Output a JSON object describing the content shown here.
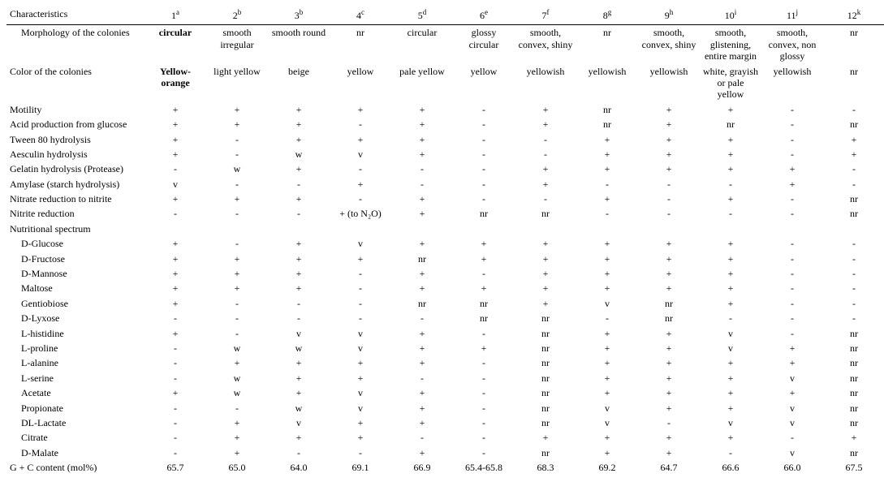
{
  "header": {
    "title": "Characteristics",
    "columns": [
      {
        "num": "1",
        "sup": "a"
      },
      {
        "num": "2",
        "sup": "b"
      },
      {
        "num": "3",
        "sup": "b"
      },
      {
        "num": "4",
        "sup": "c"
      },
      {
        "num": "5",
        "sup": "d"
      },
      {
        "num": "6",
        "sup": "e"
      },
      {
        "num": "7",
        "sup": "f"
      },
      {
        "num": "8",
        "sup": "g"
      },
      {
        "num": "9",
        "sup": "h"
      },
      {
        "num": "10",
        "sup": "i"
      },
      {
        "num": "11",
        "sup": "j"
      },
      {
        "num": "12",
        "sup": "k"
      }
    ]
  },
  "rows": [
    {
      "label": "Morphology of the colonies",
      "indent": true,
      "bold_first": true,
      "cells": [
        "circular",
        "smooth irregular",
        "smooth round",
        "nr",
        "circular",
        "glossy circular",
        "smooth, convex, shiny",
        "nr",
        "smooth, convex, shiny",
        "smooth, glistening, entire margin",
        "smooth, convex, non glossy",
        "nr"
      ]
    },
    {
      "label": "Color of the colonies",
      "indent": false,
      "bold_first": true,
      "cells": [
        "Yellow-orange",
        "light yellow",
        "beige",
        "yellow",
        "pale yellow",
        "yellow",
        "yellowish",
        "yellowish",
        "yellowish",
        "white, grayish or pale yellow",
        "yellowish",
        "nr"
      ]
    },
    {
      "label": "Motility",
      "cells": [
        "+",
        "+",
        "+",
        "+",
        "+",
        "-",
        "+",
        "nr",
        "+",
        "+",
        "-",
        "-"
      ]
    },
    {
      "label": "Acid production from glucose",
      "cells": [
        "+",
        "+",
        "+",
        "-",
        "+",
        "-",
        "+",
        "nr",
        "+",
        "nr",
        "-",
        "nr"
      ]
    },
    {
      "label": "Tween 80 hydrolysis",
      "cells": [
        "+",
        "-",
        "+",
        "+",
        "+",
        "-",
        "-",
        "+",
        "+",
        "+",
        "-",
        "+"
      ]
    },
    {
      "label": "Aesculin hydrolysis",
      "cells": [
        "+",
        "-",
        "w",
        "v",
        "+",
        "-",
        "-",
        "+",
        "+",
        "+",
        "-",
        "+"
      ]
    },
    {
      "label": "Gelatin hydrolysis (Protease)",
      "cells": [
        "-",
        "w",
        "+",
        "-",
        "-",
        "-",
        "+",
        "+",
        "+",
        "+",
        "+",
        "-"
      ]
    },
    {
      "label": "Amylase (starch hydrolysis)",
      "cells": [
        "v",
        "-",
        "-",
        "+",
        "-",
        "-",
        "+",
        "-",
        "-",
        "-",
        "+",
        "-"
      ]
    },
    {
      "label": "Nitrate reduction to nitrite",
      "cells": [
        "+",
        "+",
        "+",
        "-",
        "+",
        "-",
        "-",
        "+",
        "-",
        "+",
        "-",
        "nr"
      ]
    },
    {
      "label": "Nitrite reduction",
      "cells": [
        "-",
        "-",
        "-",
        "+ (to N₂O)",
        "+",
        "nr",
        "nr",
        "-",
        "-",
        "-",
        "-",
        "nr"
      ]
    },
    {
      "label": "Nutritional spectrum",
      "cells": [
        "",
        "",
        "",
        "",
        "",
        "",
        "",
        "",
        "",
        "",
        "",
        ""
      ]
    },
    {
      "label": "D-Glucose",
      "indent": true,
      "cells": [
        "+",
        "-",
        "+",
        "v",
        "+",
        "+",
        "+",
        "+",
        "+",
        "+",
        "-",
        "-"
      ]
    },
    {
      "label": "D-Fructose",
      "indent": true,
      "cells": [
        "+",
        "+",
        "+",
        "+",
        "nr",
        "+",
        "+",
        "+",
        "+",
        "+",
        "-",
        "-"
      ]
    },
    {
      "label": "D-Mannose",
      "indent": true,
      "cells": [
        "+",
        "+",
        "+",
        "-",
        "+",
        "-",
        "+",
        "+",
        "+",
        "+",
        "-",
        "-"
      ]
    },
    {
      "label": "Maltose",
      "indent": true,
      "cells": [
        "+",
        "+",
        "+",
        "-",
        "+",
        "+",
        "+",
        "+",
        "+",
        "+",
        "-",
        "-"
      ]
    },
    {
      "label": "Gentiobiose",
      "indent": true,
      "cells": [
        "+",
        "-",
        "-",
        "-",
        "nr",
        "nr",
        "+",
        "v",
        "nr",
        "+",
        "-",
        "-"
      ]
    },
    {
      "label": "D-Lyxose",
      "indent": true,
      "cells": [
        "-",
        "-",
        "-",
        "-",
        "-",
        "nr",
        "nr",
        "-",
        "nr",
        "-",
        "-",
        "-"
      ]
    },
    {
      "label": "L-histidine",
      "indent": true,
      "cells": [
        "+",
        "-",
        "v",
        "v",
        "+",
        "-",
        "nr",
        "+",
        "+",
        "v",
        "-",
        "nr"
      ]
    },
    {
      "label": "L-proline",
      "indent": true,
      "cells": [
        "-",
        "w",
        "w",
        "v",
        "+",
        "+",
        "nr",
        "+",
        "+",
        "v",
        "+",
        "nr"
      ]
    },
    {
      "label": "L-alanine",
      "indent": true,
      "cells": [
        "-",
        "+",
        "+",
        "+",
        "+",
        "-",
        "nr",
        "+",
        "+",
        "+",
        "+",
        "nr"
      ]
    },
    {
      "label": "L-serine",
      "indent": true,
      "cells": [
        "-",
        "w",
        "+",
        "+",
        "-",
        "-",
        "nr",
        "+",
        "+",
        "+",
        "v",
        "nr"
      ]
    },
    {
      "label": "Acetate",
      "indent": true,
      "cells": [
        "+",
        "w",
        "+",
        "v",
        "+",
        "-",
        "nr",
        "+",
        "+",
        "+",
        "+",
        "nr"
      ]
    },
    {
      "label": "Propionate",
      "indent": true,
      "cells": [
        "-",
        "-",
        "w",
        "v",
        "+",
        "-",
        "nr",
        "v",
        "+",
        "+",
        "v",
        "nr"
      ]
    },
    {
      "label": "DL-Lactate",
      "indent": true,
      "cells": [
        "-",
        "+",
        "v",
        "+",
        "+",
        "-",
        "nr",
        "v",
        "-",
        "v",
        "v",
        "nr"
      ]
    },
    {
      "label": "Citrate",
      "indent": true,
      "cells": [
        "-",
        "+",
        "+",
        "+",
        "-",
        "-",
        "+",
        "+",
        "+",
        "+",
        "-",
        "+"
      ]
    },
    {
      "label": "D-Malate",
      "indent": true,
      "cells": [
        "-",
        "+",
        "-",
        "-",
        "+",
        "-",
        "nr",
        "+",
        "+",
        "-",
        "v",
        "nr"
      ]
    },
    {
      "label": "G + C content (mol%)",
      "cells": [
        "65.7",
        "65.0",
        "64.0",
        "69.1",
        "66.9",
        "65.4-65.8",
        "68.3",
        "69.2",
        "64.7",
        "66.6",
        "66.0",
        "67.5"
      ]
    }
  ]
}
